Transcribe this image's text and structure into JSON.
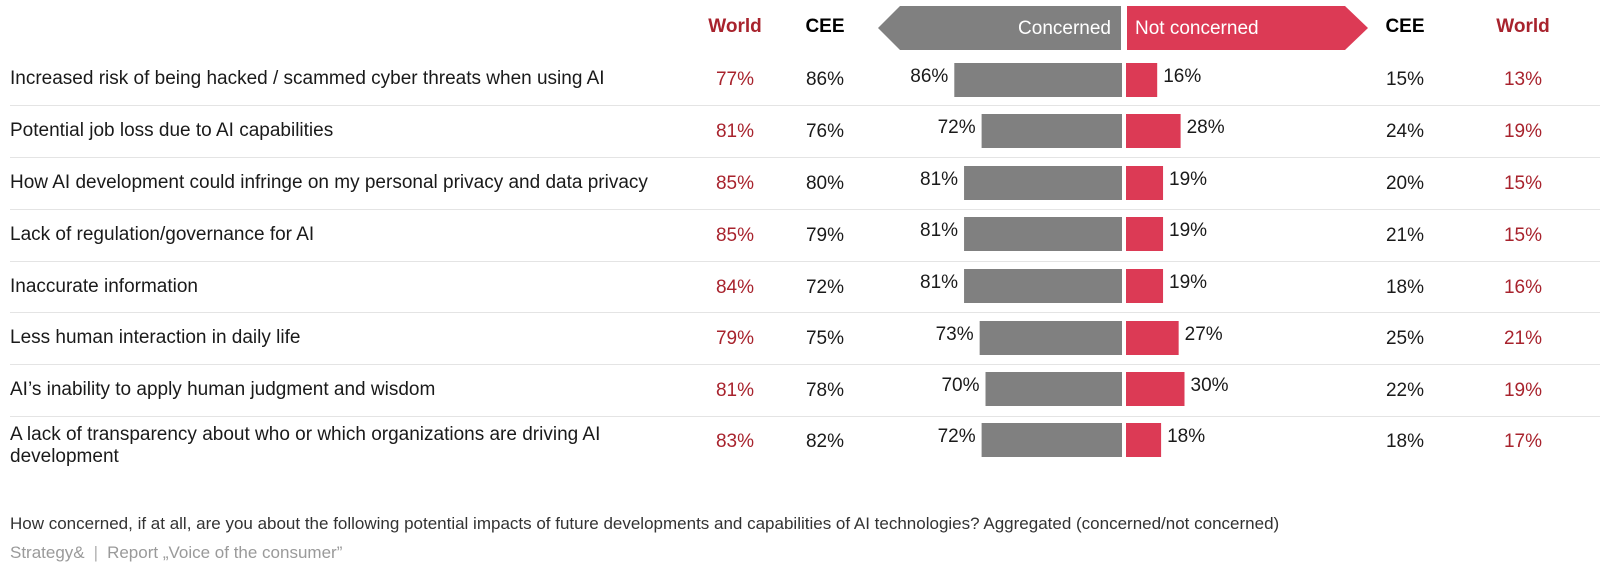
{
  "header": {
    "left_world": "World",
    "left_cee": "CEE",
    "concerned": "Concerned",
    "not_concerned": "Not concerned",
    "right_cee": "CEE",
    "right_world": "World"
  },
  "colors": {
    "concerned": "#808080",
    "not_concerned": "#dc3a55",
    "world_text": "#a8232d"
  },
  "chart_data": {
    "type": "bar",
    "categories": [
      "Increased risk of being hacked / scammed cyber threats when using AI",
      "Potential job loss due to AI capabilities",
      "How AI development could infringe on my personal privacy and data privacy",
      "Lack of regulation/governance for AI",
      "Inaccurate information",
      "Less human interaction in daily life",
      "AI’s inability to apply human judgment and wisdom",
      "A lack of transparency about who or which organizations are driving AI development"
    ],
    "series": [
      {
        "name": "Concerned",
        "values": [
          86,
          72,
          81,
          81,
          81,
          73,
          70,
          72
        ]
      },
      {
        "name": "Not concerned",
        "values": [
          16,
          28,
          19,
          19,
          19,
          27,
          30,
          18
        ]
      }
    ],
    "world_concerned": [
      "77%",
      "81%",
      "85%",
      "85%",
      "84%",
      "79%",
      "81%",
      "83%"
    ],
    "cee_concerned": [
      "86%",
      "76%",
      "80%",
      "79%",
      "72%",
      "75%",
      "78%",
      "82%"
    ],
    "concerned_labels": [
      "86%",
      "72%",
      "81%",
      "81%",
      "81%",
      "73%",
      "70%",
      "72%"
    ],
    "not_concerned_labels": [
      "16%",
      "28%",
      "19%",
      "19%",
      "19%",
      "27%",
      "30%",
      "18%"
    ],
    "cee_not_concerned": [
      "15%",
      "24%",
      "20%",
      "21%",
      "18%",
      "25%",
      "22%",
      "18%"
    ],
    "world_not_concerned": [
      "13%",
      "19%",
      "15%",
      "15%",
      "16%",
      "21%",
      "19%",
      "17%"
    ],
    "xlim": [
      0,
      100
    ]
  },
  "footer": {
    "question": "How concerned, if at all, are you about the following potential impacts of future developments and capabilities of AI technologies? Aggregated (concerned/not concerned)",
    "brand": "Strategy&",
    "separator": "|",
    "report": "Report „Voice of the consumer”"
  }
}
